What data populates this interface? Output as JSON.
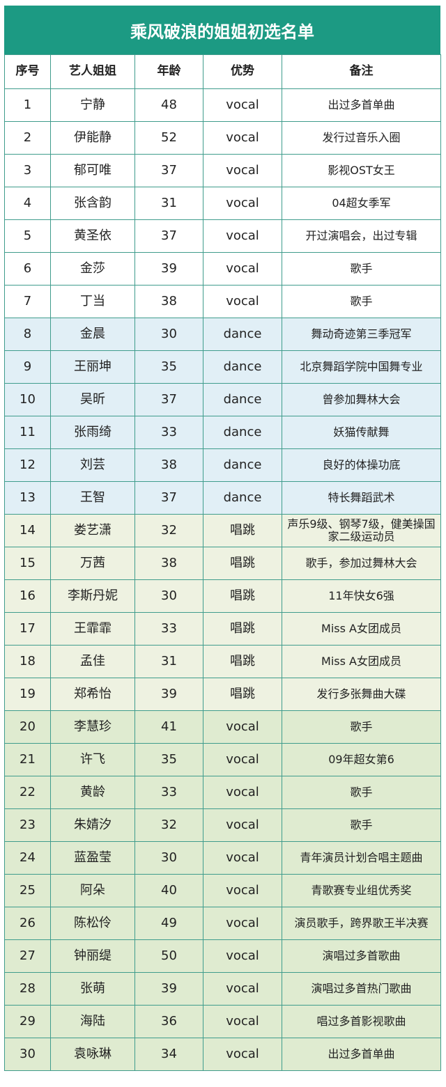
{
  "title": "乘风破浪的姐姐初选名单",
  "headers": [
    "序号",
    "艺人姐姐",
    "年龄",
    "优势",
    "备注"
  ],
  "group_colors": [
    "#ffffff",
    "#e1eff6",
    "#eef2e1",
    "#dfebd0"
  ],
  "rows": [
    {
      "no": "1",
      "name": "宁静",
      "age": "48",
      "skill": "vocal",
      "note": "出过多首单曲",
      "group": 0
    },
    {
      "no": "2",
      "name": "伊能静",
      "age": "52",
      "skill": "vocal",
      "note": "发行过音乐入圈",
      "group": 0
    },
    {
      "no": "3",
      "name": "郁可唯",
      "age": "37",
      "skill": "vocal",
      "note": "影视OST女王",
      "group": 0
    },
    {
      "no": "4",
      "name": "张含韵",
      "age": "31",
      "skill": "vocal",
      "note": "04超女季军",
      "group": 0
    },
    {
      "no": "5",
      "name": "黄圣依",
      "age": "37",
      "skill": "vocal",
      "note": "开过演唱会，出过专辑",
      "group": 0
    },
    {
      "no": "6",
      "name": "金莎",
      "age": "39",
      "skill": "vocal",
      "note": "歌手",
      "group": 0
    },
    {
      "no": "7",
      "name": "丁当",
      "age": "38",
      "skill": "vocal",
      "note": "歌手",
      "group": 0
    },
    {
      "no": "8",
      "name": "金晨",
      "age": "30",
      "skill": "dance",
      "note": "舞动奇迹第三季冠军",
      "group": 1
    },
    {
      "no": "9",
      "name": "王丽坤",
      "age": "35",
      "skill": "dance",
      "note": "北京舞蹈学院中国舞专业",
      "group": 1
    },
    {
      "no": "10",
      "name": "吴昕",
      "age": "37",
      "skill": "dance",
      "note": "曾参加舞林大会",
      "group": 1
    },
    {
      "no": "11",
      "name": "张雨绮",
      "age": "33",
      "skill": "dance",
      "note": "妖猫传献舞",
      "group": 1
    },
    {
      "no": "12",
      "name": "刘芸",
      "age": "38",
      "skill": "dance",
      "note": "良好的体操功底",
      "group": 1
    },
    {
      "no": "13",
      "name": "王智",
      "age": "37",
      "skill": "dance",
      "note": "特长舞蹈武术",
      "group": 1
    },
    {
      "no": "14",
      "name": "娄艺潇",
      "age": "32",
      "skill": "唱跳",
      "note": "声乐9级、钢琴7级，健美操国家二级运动员",
      "group": 2
    },
    {
      "no": "15",
      "name": "万茜",
      "age": "38",
      "skill": "唱跳",
      "note": "歌手，参加过舞林大会",
      "group": 2
    },
    {
      "no": "16",
      "name": "李斯丹妮",
      "age": "30",
      "skill": "唱跳",
      "note": "11年快女6强",
      "group": 2
    },
    {
      "no": "17",
      "name": "王霏霏",
      "age": "33",
      "skill": "唱跳",
      "note": "Miss A女团成员",
      "group": 2
    },
    {
      "no": "18",
      "name": "孟佳",
      "age": "31",
      "skill": "唱跳",
      "note": "Miss A女团成员",
      "group": 2
    },
    {
      "no": "19",
      "name": "郑希怡",
      "age": "39",
      "skill": "唱跳",
      "note": "发行多张舞曲大碟",
      "group": 2
    },
    {
      "no": "20",
      "name": "李慧珍",
      "age": "41",
      "skill": "vocal",
      "note": "歌手",
      "group": 3
    },
    {
      "no": "21",
      "name": "许飞",
      "age": "35",
      "skill": "vocal",
      "note": "09年超女第6",
      "group": 3
    },
    {
      "no": "22",
      "name": "黄龄",
      "age": "33",
      "skill": "vocal",
      "note": "歌手",
      "group": 3
    },
    {
      "no": "23",
      "name": "朱婧汐",
      "age": "32",
      "skill": "vocal",
      "note": "歌手",
      "group": 3
    },
    {
      "no": "24",
      "name": "蓝盈莹",
      "age": "30",
      "skill": "vocal",
      "note": "青年演员计划合唱主题曲",
      "group": 3
    },
    {
      "no": "25",
      "name": "阿朵",
      "age": "40",
      "skill": "vocal",
      "note": "青歌赛专业组优秀奖",
      "group": 3
    },
    {
      "no": "26",
      "name": "陈松伶",
      "age": "49",
      "skill": "vocal",
      "note": "演员歌手，跨界歌王半决赛",
      "group": 3
    },
    {
      "no": "27",
      "name": "钟丽缇",
      "age": "50",
      "skill": "vocal",
      "note": "演唱过多首歌曲",
      "group": 3
    },
    {
      "no": "28",
      "name": "张萌",
      "age": "39",
      "skill": "vocal",
      "note": "演唱过多首热门歌曲",
      "group": 3
    },
    {
      "no": "29",
      "name": "海陆",
      "age": "36",
      "skill": "vocal",
      "note": "唱过多首影视歌曲",
      "group": 3
    },
    {
      "no": "30",
      "name": "袁咏琳",
      "age": "34",
      "skill": "vocal",
      "note": "出过多首单曲",
      "group": 3
    }
  ]
}
